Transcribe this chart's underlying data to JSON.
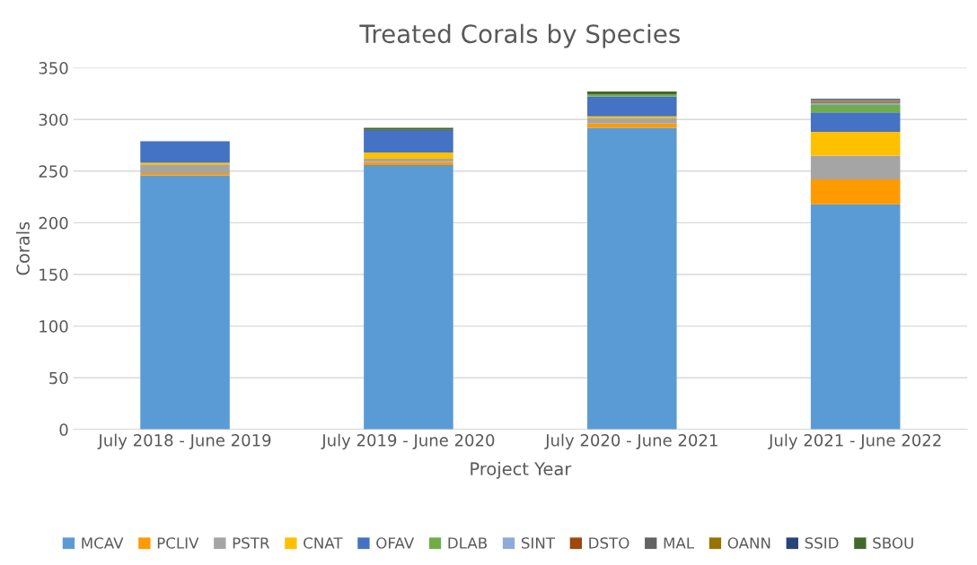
{
  "chart_data": {
    "type": "bar",
    "stacked": true,
    "title": "Treated Corals by Species",
    "xlabel": "Project Year",
    "ylabel": "Corals",
    "categories": [
      "July 2018 - June 2019",
      "July 2019 - June 2020",
      "July 2020 - June 2021",
      "July 2021 - June 2022"
    ],
    "series": [
      {
        "name": "MCAV",
        "color": "#5b9bd5",
        "values": [
          246,
          256,
          292,
          218
        ]
      },
      {
        "name": "PCLIV",
        "color": "#ff9a00",
        "values": [
          2,
          3,
          4,
          24
        ]
      },
      {
        "name": "PSTR",
        "color": "#a5a5a5",
        "values": [
          8,
          3,
          5,
          23
        ]
      },
      {
        "name": "CNAT",
        "color": "#ffc000",
        "values": [
          2,
          6,
          2,
          23
        ]
      },
      {
        "name": "OFAV",
        "color": "#4472c4",
        "values": [
          21,
          21,
          19,
          19
        ]
      },
      {
        "name": "DLAB",
        "color": "#70ad47",
        "values": [
          0,
          0,
          2,
          7
        ]
      },
      {
        "name": "SINT",
        "color": "#8eaadb",
        "values": [
          0,
          0,
          0,
          2
        ]
      },
      {
        "name": "DSTO",
        "color": "#9e480e",
        "values": [
          0,
          0,
          0,
          1
        ]
      },
      {
        "name": "MAL",
        "color": "#636363",
        "values": [
          0,
          0,
          0,
          1
        ]
      },
      {
        "name": "OANN",
        "color": "#997300",
        "values": [
          0,
          0,
          0,
          1
        ]
      },
      {
        "name": "SSID",
        "color": "#264478",
        "values": [
          0,
          1,
          0,
          1
        ]
      },
      {
        "name": "SBOU",
        "color": "#43682b",
        "values": [
          0,
          2,
          3,
          0
        ]
      }
    ],
    "ylim": [
      0,
      350
    ],
    "yticks": [
      0,
      50,
      100,
      150,
      200,
      250,
      300,
      350
    ],
    "grid": "y",
    "legend": "bottom"
  }
}
